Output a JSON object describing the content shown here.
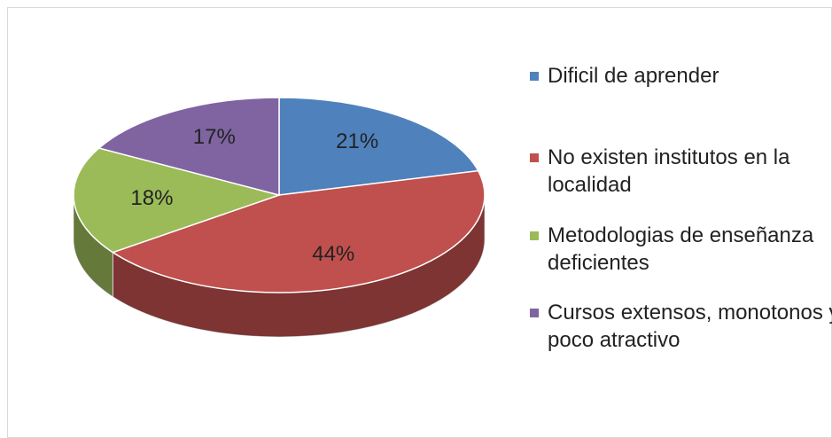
{
  "chart_data": {
    "type": "pie",
    "categories": [
      "Dificil de aprender",
      "No existen institutos en la localidad",
      "Metodologias de enseñanza deficientes",
      "Cursos extensos, monotonos y poco atractivo"
    ],
    "values": [
      21,
      44,
      18,
      17
    ],
    "value_labels": [
      "21%",
      "44%",
      "18%",
      "17%"
    ],
    "colors": [
      "#4f81bd",
      "#c0504d",
      "#9bbb59",
      "#8064a2"
    ],
    "legend": "right"
  }
}
